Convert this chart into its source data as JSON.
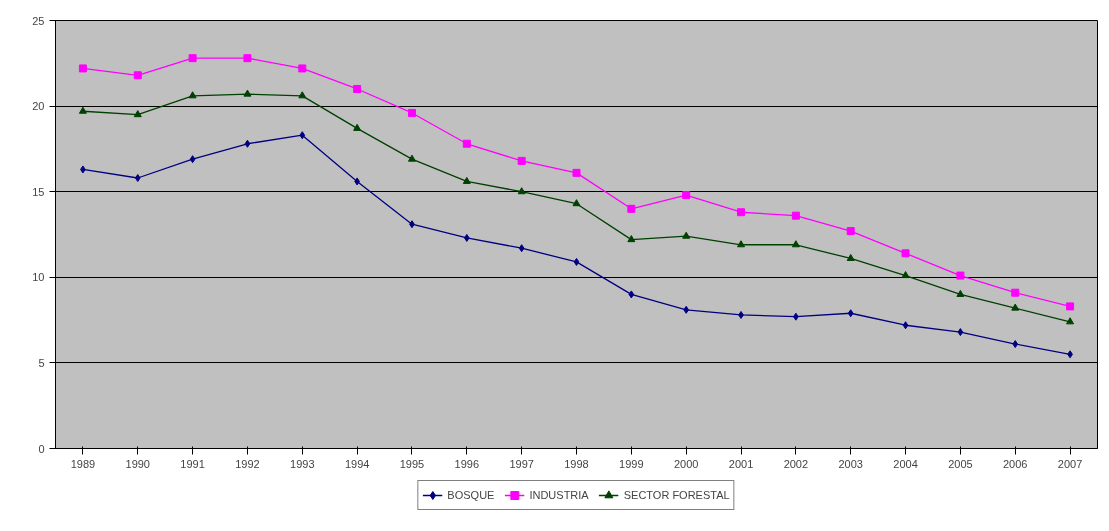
{
  "chart_data": {
    "type": "line",
    "categories": [
      "1989",
      "1990",
      "1991",
      "1992",
      "1993",
      "1994",
      "1995",
      "1996",
      "1997",
      "1998",
      "1999",
      "2000",
      "2001",
      "2002",
      "2003",
      "2004",
      "2005",
      "2006",
      "2007"
    ],
    "series": [
      {
        "name": "BOSQUE",
        "color": "#000080",
        "marker": "diamond",
        "values": [
          16.3,
          15.8,
          16.9,
          17.8,
          18.3,
          15.6,
          13.1,
          12.3,
          11.7,
          10.9,
          9.0,
          8.1,
          7.8,
          7.7,
          7.9,
          7.2,
          6.8,
          6.1,
          5.5
        ]
      },
      {
        "name": "INDUSTRIA",
        "color": "#ff00ff",
        "marker": "square",
        "values": [
          22.2,
          21.8,
          22.8,
          22.8,
          22.2,
          21.0,
          19.6,
          17.8,
          16.8,
          16.1,
          14.0,
          14.8,
          13.8,
          13.6,
          12.7,
          11.4,
          10.1,
          9.1,
          8.3
        ]
      },
      {
        "name": "SECTOR FORESTAL",
        "color": "#004000",
        "marker": "triangle",
        "values": [
          19.7,
          19.5,
          20.6,
          20.7,
          20.6,
          18.7,
          16.9,
          15.6,
          15.0,
          14.3,
          12.2,
          12.4,
          11.9,
          11.9,
          11.1,
          10.1,
          9.0,
          8.2,
          7.4
        ]
      }
    ],
    "ylim": [
      0,
      25
    ],
    "yticks": [
      0,
      5,
      10,
      15,
      20,
      25
    ],
    "grid": "y",
    "legend": "bottom",
    "line_style": "solid"
  }
}
